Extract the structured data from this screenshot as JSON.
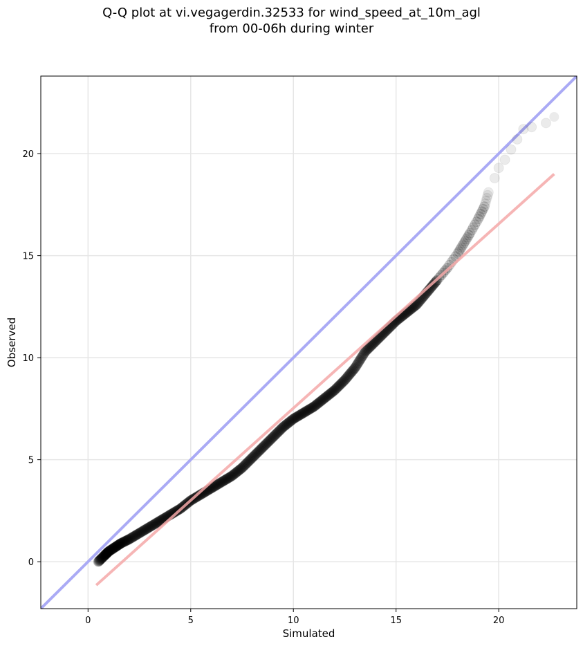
{
  "chart_data": {
    "type": "scatter",
    "title_line1": "Q-Q plot at vi.vegagerdin.32533 for wind_speed_at_10m_agl",
    "title_line2": "from 00-06h during winter",
    "xlabel": "Simulated",
    "ylabel": "Observed",
    "xlim": [
      -2.3,
      23.8
    ],
    "ylim": [
      -2.3,
      23.8
    ],
    "xticks": [
      0,
      5,
      10,
      15,
      20
    ],
    "yticks": [
      0,
      5,
      10,
      15,
      20
    ],
    "grid": true,
    "identity_line": {
      "name": "1:1",
      "color": "#aaaaf5"
    },
    "fit_line": {
      "color": "#f5a8a8",
      "x": [
        0.4,
        22.7
      ],
      "y": [
        -1.15,
        19.0
      ]
    },
    "points_color": "#000000",
    "quantiles": {
      "x": [
        0.5,
        0.8,
        1.0,
        1.3,
        1.6,
        2.0,
        2.5,
        3.0,
        3.5,
        4.0,
        4.5,
        5.0,
        5.5,
        6.0,
        6.5,
        7.0,
        7.5,
        8.0,
        8.5,
        9.0,
        9.5,
        10.0,
        10.5,
        11.0,
        11.5,
        12.0,
        12.5,
        13.0,
        13.5,
        14.0,
        14.5,
        15.0,
        15.5,
        16.0,
        16.5,
        17.0,
        17.5,
        18.0,
        18.3,
        18.6,
        19.0,
        19.3,
        19.5,
        19.8,
        20.0,
        20.3,
        20.6,
        20.9,
        21.2,
        21.6,
        22.3,
        22.7
      ],
      "y": [
        0.0,
        0.3,
        0.5,
        0.7,
        0.9,
        1.1,
        1.4,
        1.7,
        2.0,
        2.3,
        2.6,
        3.0,
        3.3,
        3.6,
        3.9,
        4.2,
        4.6,
        5.1,
        5.6,
        6.1,
        6.6,
        7.0,
        7.3,
        7.6,
        8.0,
        8.4,
        8.9,
        9.5,
        10.3,
        10.8,
        11.3,
        11.8,
        12.2,
        12.6,
        13.2,
        13.8,
        14.4,
        15.1,
        15.6,
        16.1,
        16.8,
        17.4,
        18.1,
        18.8,
        19.3,
        19.7,
        20.2,
        20.7,
        21.2,
        21.3,
        21.5,
        21.8
      ]
    }
  }
}
